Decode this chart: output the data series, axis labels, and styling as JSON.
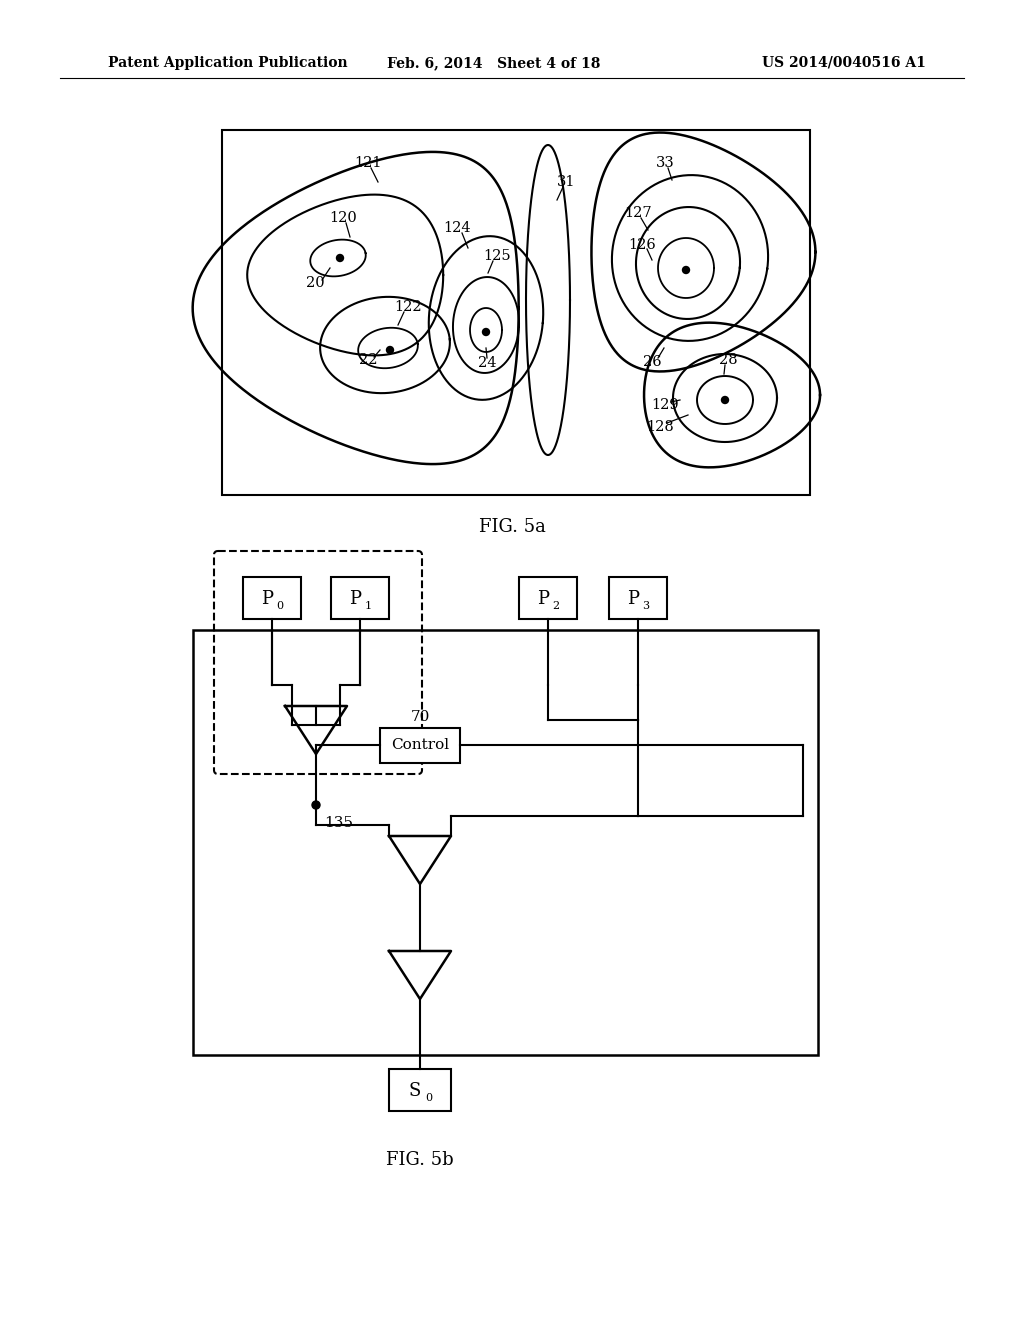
{
  "bg_color": "#ffffff",
  "line_color": "#000000",
  "header_left": "Patent Application Publication",
  "header_mid": "Feb. 6, 2014   Sheet 4 of 18",
  "header_right": "US 2014/0040516 A1",
  "fig5a_caption": "FIG. 5a",
  "fig5b_caption": "FIG. 5b"
}
